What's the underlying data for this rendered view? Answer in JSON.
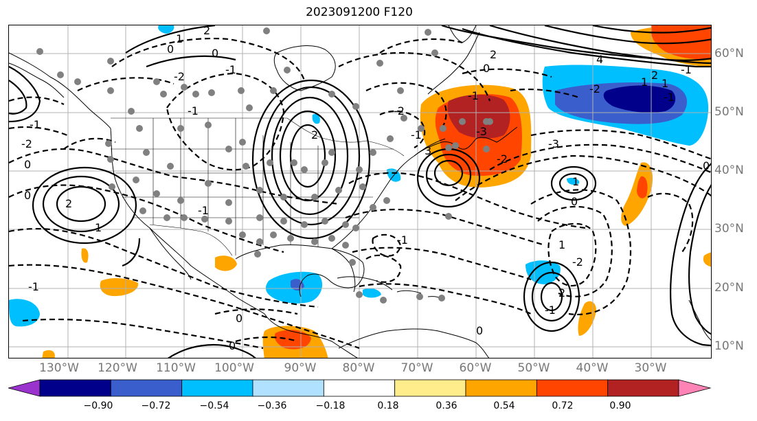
{
  "title": "2023091200 F120",
  "longitude_labels": [
    "130°W",
    "120°W",
    "110°W",
    "100°W",
    "90°W",
    "80°W",
    "70°W",
    "60°W",
    "50°W",
    "40°W",
    "30°W"
  ],
  "latitude_labels": [
    "60°N",
    "50°N",
    "40°N",
    "30°N",
    "20°N",
    "10°N"
  ],
  "colorbar": {
    "ticks": [
      "−0.90",
      "−0.72",
      "−0.54",
      "−0.36",
      "−0.18",
      "0.18",
      "0.36",
      "0.54",
      "0.72",
      "0.90"
    ],
    "colors": [
      "#9a32cd",
      "#00008b",
      "#3a5fcd",
      "#00bfff",
      "#b0e2ff",
      "#ffffff",
      "#ffec8b",
      "#ffa500",
      "#ff4500",
      "#b22222",
      "#ff83b4"
    ]
  },
  "contour_labels": [
    "0",
    "1",
    "2",
    "0",
    "-1",
    "-2",
    "-1",
    "-2",
    "0",
    "2",
    "1",
    "-1",
    "-1",
    "-2",
    "0",
    "-3",
    "-1",
    "2",
    "-2",
    "1",
    "-1",
    "0",
    "2",
    "-2",
    "-1",
    "0",
    "-1",
    "0",
    "1",
    "0",
    "-1",
    "0",
    "2",
    "4",
    "1",
    "-1",
    "3",
    "-3",
    "-2",
    "0",
    "1",
    "2",
    "-1"
  ],
  "grid_lines": true,
  "colors": {
    "land_outline": "#000000",
    "gridline": "#b0b0b0",
    "station_dot": "#808080",
    "axis_label": "#777777"
  }
}
